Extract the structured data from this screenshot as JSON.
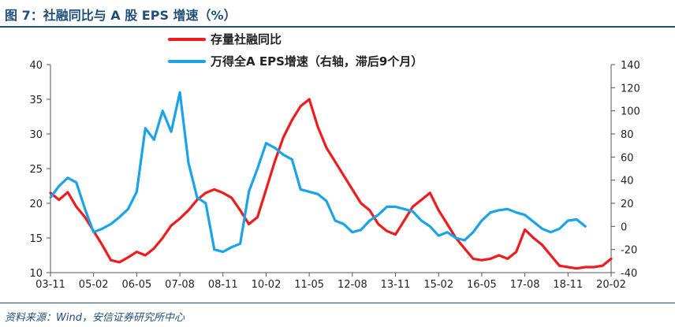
{
  "page": {
    "title": "图 7：社融同比与 A 股 EPS 增速（%）",
    "source": "资料来源：Wind，安信证券研究所中心"
  },
  "chart_data": {
    "type": "line",
    "title": "图 7：社融同比与 A 股 EPS 增速（%）",
    "x_ticks": [
      "03-11",
      "05-02",
      "06-05",
      "07-08",
      "08-11",
      "10-02",
      "11-05",
      "12-08",
      "13-11",
      "15-02",
      "16-05",
      "17-08",
      "18-11",
      "20-02"
    ],
    "y_left": {
      "lim": [
        10,
        40
      ],
      "ticks": [
        10,
        15,
        20,
        25,
        30,
        35,
        40
      ]
    },
    "y_right": {
      "lim": [
        -40,
        140
      ],
      "ticks": [
        -40,
        -20,
        0,
        20,
        40,
        60,
        80,
        100,
        120,
        140
      ]
    },
    "grid": false,
    "legend_position": "top",
    "series": [
      {
        "name": "存量社融同比",
        "axis": "left",
        "color": "#ee1c1c",
        "points": [
          [
            "03-11",
            21.5
          ],
          [
            "04-02",
            20.5
          ],
          [
            "04-05",
            21.6
          ],
          [
            "04-08",
            19.5
          ],
          [
            "04-11",
            18.0
          ],
          [
            "05-02",
            16.0
          ],
          [
            "05-05",
            14.0
          ],
          [
            "05-08",
            11.8
          ],
          [
            "05-11",
            11.5
          ],
          [
            "06-02",
            12.2
          ],
          [
            "06-05",
            13.0
          ],
          [
            "06-08",
            12.5
          ],
          [
            "06-11",
            13.5
          ],
          [
            "07-02",
            15.0
          ],
          [
            "07-05",
            16.8
          ],
          [
            "07-08",
            17.8
          ],
          [
            "07-11",
            19.0
          ],
          [
            "08-02",
            20.5
          ],
          [
            "08-05",
            21.5
          ],
          [
            "08-08",
            22.0
          ],
          [
            "08-11",
            21.5
          ],
          [
            "09-02",
            20.8
          ],
          [
            "09-05",
            19.0
          ],
          [
            "09-08",
            17.0
          ],
          [
            "09-11",
            18.0
          ],
          [
            "10-02",
            22.0
          ],
          [
            "10-05",
            26.0
          ],
          [
            "10-08",
            29.5
          ],
          [
            "10-11",
            32.0
          ],
          [
            "11-02",
            34.0
          ],
          [
            "11-05",
            35.0
          ],
          [
            "11-08",
            31.0
          ],
          [
            "11-11",
            28.0
          ],
          [
            "12-02",
            26.0
          ],
          [
            "12-05",
            24.0
          ],
          [
            "12-08",
            22.0
          ],
          [
            "12-11",
            20.0
          ],
          [
            "13-02",
            19.0
          ],
          [
            "13-05",
            17.0
          ],
          [
            "13-08",
            16.0
          ],
          [
            "13-11",
            15.5
          ],
          [
            "14-02",
            17.5
          ],
          [
            "14-05",
            19.5
          ],
          [
            "14-08",
            20.5
          ],
          [
            "14-11",
            21.5
          ],
          [
            "15-02",
            19.0
          ],
          [
            "15-05",
            17.0
          ],
          [
            "15-08",
            15.0
          ],
          [
            "15-11",
            13.5
          ],
          [
            "16-02",
            12.0
          ],
          [
            "16-05",
            11.8
          ],
          [
            "16-08",
            12.0
          ],
          [
            "16-11",
            12.5
          ],
          [
            "17-02",
            12.0
          ],
          [
            "17-05",
            13.0
          ],
          [
            "17-08",
            16.2
          ],
          [
            "17-11",
            15.0
          ],
          [
            "18-02",
            14.0
          ],
          [
            "18-05",
            12.5
          ],
          [
            "18-08",
            11.0
          ],
          [
            "18-11",
            10.8
          ],
          [
            "19-02",
            10.6
          ],
          [
            "19-05",
            10.8
          ],
          [
            "19-08",
            10.8
          ],
          [
            "19-11",
            11.0
          ],
          [
            "20-02",
            12.0
          ]
        ]
      },
      {
        "name": "万得全A EPS增速（右轴，滞后9个月）",
        "axis": "right",
        "color": "#1aa3e8",
        "points": [
          [
            "03-11",
            25
          ],
          [
            "04-02",
            35
          ],
          [
            "04-05",
            42
          ],
          [
            "04-08",
            38
          ],
          [
            "04-11",
            15
          ],
          [
            "05-02",
            -5
          ],
          [
            "05-05",
            -2
          ],
          [
            "05-08",
            2
          ],
          [
            "05-11",
            8
          ],
          [
            "06-02",
            15
          ],
          [
            "06-05",
            30
          ],
          [
            "06-08",
            85
          ],
          [
            "06-11",
            75
          ],
          [
            "07-02",
            100
          ],
          [
            "07-05",
            82
          ],
          [
            "07-08",
            116
          ],
          [
            "07-11",
            55
          ],
          [
            "08-02",
            25
          ],
          [
            "08-05",
            20
          ],
          [
            "08-08",
            -20
          ],
          [
            "08-11",
            -22
          ],
          [
            "09-02",
            -18
          ],
          [
            "09-05",
            -15
          ],
          [
            "09-08",
            30
          ],
          [
            "09-11",
            50
          ],
          [
            "10-02",
            72
          ],
          [
            "10-05",
            68
          ],
          [
            "10-08",
            62
          ],
          [
            "10-11",
            58
          ],
          [
            "11-02",
            32
          ],
          [
            "11-05",
            30
          ],
          [
            "11-08",
            28
          ],
          [
            "11-11",
            22
          ],
          [
            "12-02",
            5
          ],
          [
            "12-05",
            2
          ],
          [
            "12-08",
            -5
          ],
          [
            "12-11",
            -3
          ],
          [
            "13-02",
            5
          ],
          [
            "13-05",
            10
          ],
          [
            "13-08",
            17
          ],
          [
            "13-11",
            17
          ],
          [
            "14-02",
            15
          ],
          [
            "14-05",
            13
          ],
          [
            "14-08",
            5
          ],
          [
            "14-11",
            0
          ],
          [
            "15-02",
            -8
          ],
          [
            "15-05",
            -5
          ],
          [
            "15-08",
            -10
          ],
          [
            "15-11",
            -12
          ],
          [
            "16-02",
            -5
          ],
          [
            "16-05",
            5
          ],
          [
            "16-08",
            12
          ],
          [
            "16-11",
            14
          ],
          [
            "17-02",
            15
          ],
          [
            "17-05",
            12
          ],
          [
            "17-08",
            10
          ],
          [
            "17-11",
            4
          ],
          [
            "18-02",
            -2
          ],
          [
            "18-05",
            -5
          ],
          [
            "18-08",
            -2
          ],
          [
            "18-11",
            5
          ],
          [
            "19-02",
            6
          ],
          [
            "19-05",
            0
          ]
        ]
      }
    ]
  }
}
